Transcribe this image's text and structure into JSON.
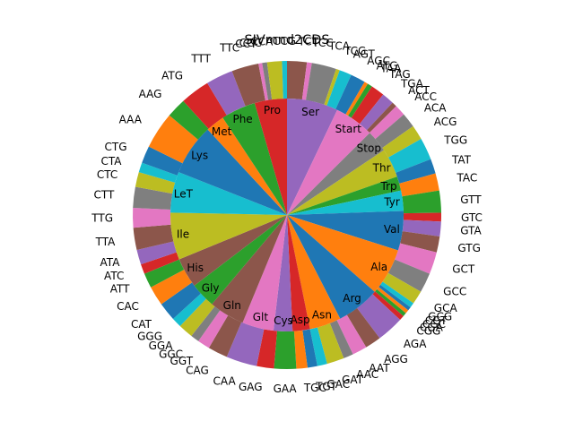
{
  "chart_data": {
    "type": "pie",
    "title": "SIVmnd2CDS",
    "inner_ring": {
      "description": "amino acid groups",
      "labels": [
        "Ser",
        "Start",
        "Stop",
        "Thr",
        "Trp",
        "Tyr",
        "Val",
        "Ala",
        "Arg",
        "Asn",
        "Asp",
        "Cys",
        "Glt",
        "Gln",
        "Gly",
        "His",
        "Ile",
        "LeT",
        "Lys",
        "Met",
        "Phe",
        "Pro"
      ],
      "values": [
        6.5,
        5.0,
        2.8,
        3.7,
        1.8,
        2.6,
        5.0,
        6.0,
        5.5,
        4.0,
        2.2,
        2.4,
        4.0,
        4.5,
        3.2,
        3.8,
        6.0,
        5.2,
        6.5,
        2.4,
        4.4,
        4.1
      ],
      "colors": [
        "#9467bd",
        "#e377c2",
        "#7f7f7f",
        "#bcbd22",
        "#2ca02c",
        "#17becf",
        "#1f77b4",
        "#ff7f0e",
        "#1f77b4",
        "#ff7f0e",
        "#d62728",
        "#9467bd",
        "#e377c2",
        "#8c564b",
        "#2ca02c",
        "#8c564b",
        "#bcbd22",
        "#17becf",
        "#1f77b4",
        "#ff7f0e",
        "#2ca02c",
        "#d62728"
      ]
    },
    "outer_ring": {
      "description": "codons",
      "labels": [
        "TCT",
        "TCC",
        "TCA",
        "TCG",
        "AGT",
        "AGC",
        "ATG",
        "TAA",
        "TAG",
        "TGA",
        "ACT",
        "ACC",
        "ACA",
        "ACG",
        "TGG",
        "TAT",
        "TAC",
        "GTT",
        "GTC",
        "GTA",
        "GTG",
        "GCT",
        "GCC",
        "GCA",
        "GCG",
        "CGT",
        "CGC",
        "CGA",
        "CGG",
        "AGA",
        "AGG",
        "AAT",
        "AAC",
        "GAT",
        "GAC",
        "TGT",
        "TGC",
        "GAA",
        "GAG",
        "CAA",
        "CAG",
        "GGT",
        "GGC",
        "GGA",
        "GGG",
        "CAT",
        "CAC",
        "ATT",
        "ATC",
        "ATA",
        "TTA",
        "TTG",
        "CTT",
        "CTC",
        "CTA",
        "CTG",
        "AAA",
        "AAG",
        "ATG",
        "TTT",
        "TTC",
        "CCT",
        "CCC",
        "CCA",
        "CCG"
      ],
      "values": [
        1.6,
        0.4,
        2.0,
        0.3,
        1.0,
        1.2,
        0.3,
        0.4,
        1.1,
        1.0,
        0.4,
        0.9,
        1.2,
        1.2,
        1.8,
        1.2,
        1.4,
        1.8,
        0.7,
        1.2,
        1.3,
        1.8,
        1.6,
        1.1,
        0.4,
        0.3,
        0.3,
        0.3,
        0.4,
        2.2,
        1.3,
        1.2,
        0.8,
        1.4,
        0.8,
        0.8,
        0.9,
        1.8,
        1.4,
        2.5,
        1.6,
        1.0,
        0.7,
        1.2,
        0.8,
        1.5,
        1.6,
        1.2,
        0.8,
        1.2,
        1.8,
        1.6,
        1.7,
        1.2,
        0.8,
        1.4,
        3.0,
        1.6,
        2.4,
        2.2,
        2.2,
        0.3,
        0.4,
        1.2,
        0.4
      ],
      "colors": [
        "#8c564b",
        "#e377c2",
        "#7f7f7f",
        "#bcbd22",
        "#17becf",
        "#1f77b4",
        "#ff7f0e",
        "#2ca02c",
        "#d62728",
        "#9467bd",
        "#8c564b",
        "#e377c2",
        "#7f7f7f",
        "#bcbd22",
        "#17becf",
        "#1f77b4",
        "#ff7f0e",
        "#2ca02c",
        "#d62728",
        "#9467bd",
        "#8c564b",
        "#e377c2",
        "#7f7f7f",
        "#bcbd22",
        "#17becf",
        "#1f77b4",
        "#ff7f0e",
        "#2ca02c",
        "#d62728",
        "#9467bd",
        "#8c564b",
        "#e377c2",
        "#7f7f7f",
        "#bcbd22",
        "#17becf",
        "#1f77b4",
        "#ff7f0e",
        "#2ca02c",
        "#d62728",
        "#9467bd",
        "#8c564b",
        "#e377c2",
        "#7f7f7f",
        "#bcbd22",
        "#17becf",
        "#1f77b4",
        "#ff7f0e",
        "#2ca02c",
        "#d62728",
        "#9467bd",
        "#8c564b",
        "#e377c2",
        "#7f7f7f",
        "#bcbd22",
        "#17becf",
        "#1f77b4",
        "#ff7f0e",
        "#2ca02c",
        "#d62728",
        "#9467bd",
        "#8c564b",
        "#e377c2",
        "#7f7f7f",
        "#bcbd22",
        "#17becf"
      ]
    },
    "start_angle_deg": 90,
    "direction": "clockwise",
    "legend": "none"
  }
}
